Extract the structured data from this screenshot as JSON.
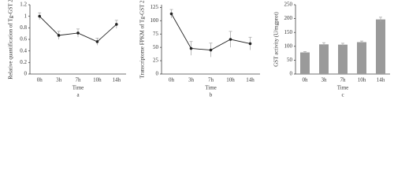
{
  "chart_data": [
    {
      "type": "line",
      "label": "a",
      "xlabel": "Time",
      "ylabel": "Relative quantification of Tg-GST 2",
      "categories": [
        "0h",
        "3h",
        "7h",
        "10h",
        "14h"
      ],
      "values": [
        1.0,
        0.67,
        0.71,
        0.56,
        0.86
      ],
      "errors": [
        0.06,
        0.07,
        0.07,
        0.06,
        0.07
      ],
      "color": "#222222",
      "ylim": [
        0,
        1.2
      ],
      "yticks": [
        0,
        0.2,
        0.4,
        0.6,
        0.8,
        1,
        1.2
      ]
    },
    {
      "type": "line",
      "label": "b",
      "xlabel": "Time",
      "ylabel": "Transcriptome FPKM of Tg-GST 2",
      "categories": [
        "0h",
        "3h",
        "7h",
        "10h",
        "14h"
      ],
      "values": [
        113,
        48,
        45,
        65,
        57
      ],
      "errors": [
        8,
        13,
        13,
        15,
        12
      ],
      "color": "#222222",
      "ylim": [
        0,
        130
      ],
      "yticks": [
        0,
        25,
        50,
        75,
        100,
        125
      ]
    },
    {
      "type": "bar",
      "label": "c",
      "xlabel": "Time",
      "ylabel": "GST activity (U/mgprot)",
      "categories": [
        "0h",
        "3h",
        "7h",
        "10h",
        "14h"
      ],
      "values": [
        78,
        107,
        106,
        115,
        197
      ],
      "errors": [
        3,
        6,
        5,
        4,
        8
      ],
      "color": "#9a9a9a",
      "ylim": [
        0,
        250
      ],
      "yticks": [
        0,
        50,
        100,
        150,
        200,
        250
      ]
    }
  ]
}
